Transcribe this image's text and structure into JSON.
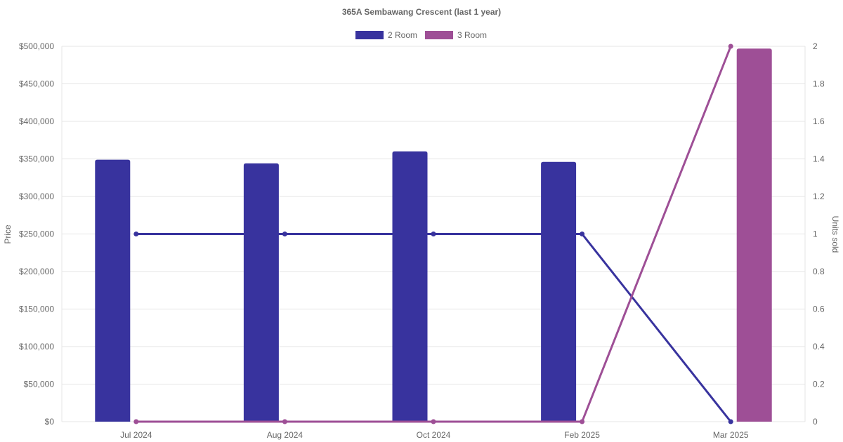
{
  "chart_data": {
    "type": "bar",
    "title": "365A Sembawang Crescent (last 1 year)",
    "categories": [
      "Jul 2024",
      "Aug 2024",
      "Oct 2024",
      "Feb 2025",
      "Mar 2025"
    ],
    "y_left": {
      "label": "Price",
      "lim": [
        0,
        500000
      ],
      "ticks": [
        "$0",
        "$50,000",
        "$100,000",
        "$150,000",
        "$200,000",
        "$250,000",
        "$300,000",
        "$350,000",
        "$400,000",
        "$450,000",
        "$500,000"
      ]
    },
    "y_right": {
      "label": "Units sold",
      "lim": [
        0,
        2
      ],
      "ticks": [
        "0",
        "0.2",
        "0.4",
        "0.6",
        "0.8",
        "1",
        "1.2",
        "1.4",
        "1.6",
        "1.8",
        "2"
      ]
    },
    "legend": {
      "position": "top"
    },
    "grid": true,
    "series": [
      {
        "name": "2 Room",
        "color": "#38339e",
        "price": [
          349000,
          344000,
          360000,
          346000,
          null
        ],
        "units_sold": [
          1,
          1,
          1,
          1,
          0
        ]
      },
      {
        "name": "3 Room",
        "color": "#9e4f96",
        "price": [
          null,
          null,
          null,
          null,
          497000
        ],
        "units_sold": [
          0,
          0,
          0,
          0,
          2
        ]
      }
    ]
  }
}
